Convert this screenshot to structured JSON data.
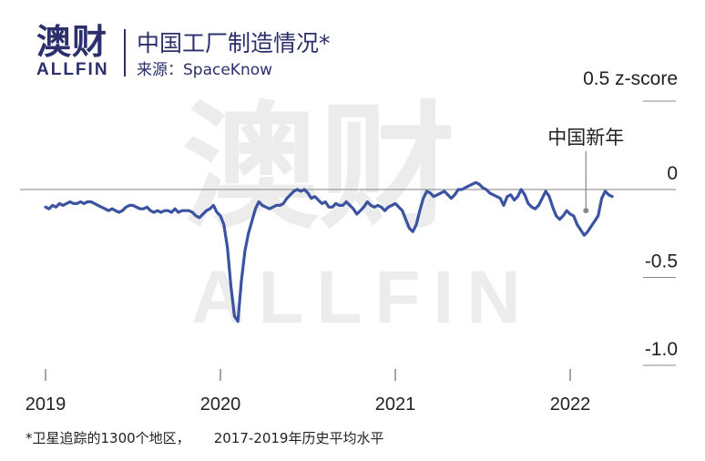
{
  "header": {
    "logo_cn": "澳财",
    "logo_en": "ALLFIN",
    "title": "中国工厂制造情况*",
    "source": "来源：SpaceKnow"
  },
  "watermark": {
    "cn": "澳财",
    "en": "ALLFIN"
  },
  "footnote": {
    "part1": "*卫星追踪的1300个地区，",
    "part2": "2017-2019年历史平均水平"
  },
  "chart_data": {
    "type": "line",
    "ylim": [
      -1.1,
      0.55
    ],
    "xlim": [
      2019.0,
      2022.45
    ],
    "yunit_label": "0.5 z-score",
    "yticks": [
      {
        "value": 0,
        "label": "0"
      },
      {
        "value": -0.5,
        "label": "-0.5"
      },
      {
        "value": -1.0,
        "label": "-1.0"
      }
    ],
    "xticks": [
      {
        "value": 2019,
        "label": "2019"
      },
      {
        "value": 2020,
        "label": "2020"
      },
      {
        "value": 2021,
        "label": "2021"
      },
      {
        "value": 2022,
        "label": "2022"
      }
    ],
    "annotation": {
      "label": "中国新年",
      "x": 2022.09,
      "y": -0.12
    },
    "color": "#3b53a0",
    "series": [
      {
        "values": [
          [
            2019.0,
            -0.1
          ],
          [
            2019.02,
            -0.11
          ],
          [
            2019.04,
            -0.09
          ],
          [
            2019.06,
            -0.1
          ],
          [
            2019.08,
            -0.08
          ],
          [
            2019.1,
            -0.09
          ],
          [
            2019.12,
            -0.08
          ],
          [
            2019.14,
            -0.07
          ],
          [
            2019.16,
            -0.08
          ],
          [
            2019.18,
            -0.08
          ],
          [
            2019.2,
            -0.07
          ],
          [
            2019.22,
            -0.08
          ],
          [
            2019.24,
            -0.07
          ],
          [
            2019.26,
            -0.07
          ],
          [
            2019.28,
            -0.08
          ],
          [
            2019.3,
            -0.09
          ],
          [
            2019.32,
            -0.1
          ],
          [
            2019.34,
            -0.11
          ],
          [
            2019.36,
            -0.12
          ],
          [
            2019.38,
            -0.11
          ],
          [
            2019.4,
            -0.12
          ],
          [
            2019.42,
            -0.13
          ],
          [
            2019.44,
            -0.12
          ],
          [
            2019.46,
            -0.1
          ],
          [
            2019.48,
            -0.09
          ],
          [
            2019.5,
            -0.09
          ],
          [
            2019.52,
            -0.1
          ],
          [
            2019.54,
            -0.11
          ],
          [
            2019.56,
            -0.11
          ],
          [
            2019.58,
            -0.1
          ],
          [
            2019.6,
            -0.12
          ],
          [
            2019.62,
            -0.13
          ],
          [
            2019.64,
            -0.12
          ],
          [
            2019.66,
            -0.13
          ],
          [
            2019.68,
            -0.12
          ],
          [
            2019.7,
            -0.12
          ],
          [
            2019.72,
            -0.13
          ],
          [
            2019.74,
            -0.11
          ],
          [
            2019.76,
            -0.13
          ],
          [
            2019.78,
            -0.12
          ],
          [
            2019.8,
            -0.12
          ],
          [
            2019.82,
            -0.12
          ],
          [
            2019.84,
            -0.13
          ],
          [
            2019.86,
            -0.15
          ],
          [
            2019.88,
            -0.16
          ],
          [
            2019.9,
            -0.14
          ],
          [
            2019.92,
            -0.12
          ],
          [
            2019.94,
            -0.11
          ],
          [
            2019.96,
            -0.09
          ],
          [
            2019.98,
            -0.13
          ],
          [
            2020.0,
            -0.15
          ],
          [
            2020.02,
            -0.2
          ],
          [
            2020.04,
            -0.33
          ],
          [
            2020.06,
            -0.55
          ],
          [
            2020.08,
            -0.72
          ],
          [
            2020.1,
            -0.75
          ],
          [
            2020.12,
            -0.52
          ],
          [
            2020.14,
            -0.35
          ],
          [
            2020.16,
            -0.25
          ],
          [
            2020.18,
            -0.18
          ],
          [
            2020.2,
            -0.11
          ],
          [
            2020.22,
            -0.07
          ],
          [
            2020.24,
            -0.09
          ],
          [
            2020.26,
            -0.1
          ],
          [
            2020.28,
            -0.11
          ],
          [
            2020.3,
            -0.1
          ],
          [
            2020.32,
            -0.09
          ],
          [
            2020.34,
            -0.09
          ],
          [
            2020.36,
            -0.08
          ],
          [
            2020.38,
            -0.05
          ],
          [
            2020.4,
            -0.03
          ],
          [
            2020.42,
            -0.01
          ],
          [
            2020.44,
            0.0
          ],
          [
            2020.46,
            -0.01
          ],
          [
            2020.48,
            0.0
          ],
          [
            2020.5,
            -0.02
          ],
          [
            2020.52,
            -0.05
          ],
          [
            2020.54,
            -0.04
          ],
          [
            2020.56,
            -0.06
          ],
          [
            2020.58,
            -0.08
          ],
          [
            2020.6,
            -0.07
          ],
          [
            2020.62,
            -0.1
          ],
          [
            2020.64,
            -0.1
          ],
          [
            2020.66,
            -0.08
          ],
          [
            2020.68,
            -0.09
          ],
          [
            2020.7,
            -0.09
          ],
          [
            2020.72,
            -0.07
          ],
          [
            2020.74,
            -0.09
          ],
          [
            2020.76,
            -0.11
          ],
          [
            2020.78,
            -0.14
          ],
          [
            2020.8,
            -0.12
          ],
          [
            2020.82,
            -0.1
          ],
          [
            2020.84,
            -0.07
          ],
          [
            2020.86,
            -0.09
          ],
          [
            2020.88,
            -0.1
          ],
          [
            2020.9,
            -0.09
          ],
          [
            2020.92,
            -0.1
          ],
          [
            2020.94,
            -0.12
          ],
          [
            2020.96,
            -0.1
          ],
          [
            2020.98,
            -0.09
          ],
          [
            2021.0,
            -0.08
          ],
          [
            2021.02,
            -0.1
          ],
          [
            2021.04,
            -0.12
          ],
          [
            2021.06,
            -0.17
          ],
          [
            2021.08,
            -0.22
          ],
          [
            2021.1,
            -0.24
          ],
          [
            2021.12,
            -0.2
          ],
          [
            2021.14,
            -0.12
          ],
          [
            2021.16,
            -0.05
          ],
          [
            2021.18,
            -0.01
          ],
          [
            2021.2,
            -0.02
          ],
          [
            2021.22,
            -0.04
          ],
          [
            2021.24,
            -0.03
          ],
          [
            2021.26,
            -0.02
          ],
          [
            2021.28,
            -0.01
          ],
          [
            2021.3,
            -0.03
          ],
          [
            2021.32,
            -0.05
          ],
          [
            2021.34,
            -0.03
          ],
          [
            2021.36,
            0.0
          ],
          [
            2021.38,
            0.0
          ],
          [
            2021.4,
            0.01
          ],
          [
            2021.42,
            0.02
          ],
          [
            2021.44,
            0.03
          ],
          [
            2021.46,
            0.04
          ],
          [
            2021.48,
            0.03
          ],
          [
            2021.5,
            0.01
          ],
          [
            2021.52,
            0.0
          ],
          [
            2021.54,
            -0.02
          ],
          [
            2021.56,
            -0.03
          ],
          [
            2021.58,
            -0.04
          ],
          [
            2021.6,
            -0.05
          ],
          [
            2021.62,
            -0.09
          ],
          [
            2021.64,
            -0.04
          ],
          [
            2021.66,
            -0.03
          ],
          [
            2021.68,
            -0.06
          ],
          [
            2021.7,
            -0.04
          ],
          [
            2021.72,
            0.0
          ],
          [
            2021.74,
            -0.03
          ],
          [
            2021.76,
            -0.08
          ],
          [
            2021.78,
            -0.1
          ],
          [
            2021.8,
            -0.11
          ],
          [
            2021.82,
            -0.09
          ],
          [
            2021.84,
            -0.05
          ],
          [
            2021.86,
            -0.01
          ],
          [
            2021.88,
            -0.04
          ],
          [
            2021.9,
            -0.1
          ],
          [
            2021.92,
            -0.15
          ],
          [
            2021.94,
            -0.17
          ],
          [
            2021.96,
            -0.15
          ],
          [
            2021.98,
            -0.12
          ],
          [
            2022.0,
            -0.14
          ],
          [
            2022.02,
            -0.15
          ],
          [
            2022.04,
            -0.2
          ],
          [
            2022.06,
            -0.23
          ],
          [
            2022.08,
            -0.26
          ],
          [
            2022.1,
            -0.24
          ],
          [
            2022.12,
            -0.21
          ],
          [
            2022.14,
            -0.18
          ],
          [
            2022.16,
            -0.15
          ],
          [
            2022.18,
            -0.05
          ],
          [
            2022.2,
            -0.01
          ],
          [
            2022.22,
            -0.03
          ],
          [
            2022.24,
            -0.04
          ]
        ]
      }
    ]
  }
}
